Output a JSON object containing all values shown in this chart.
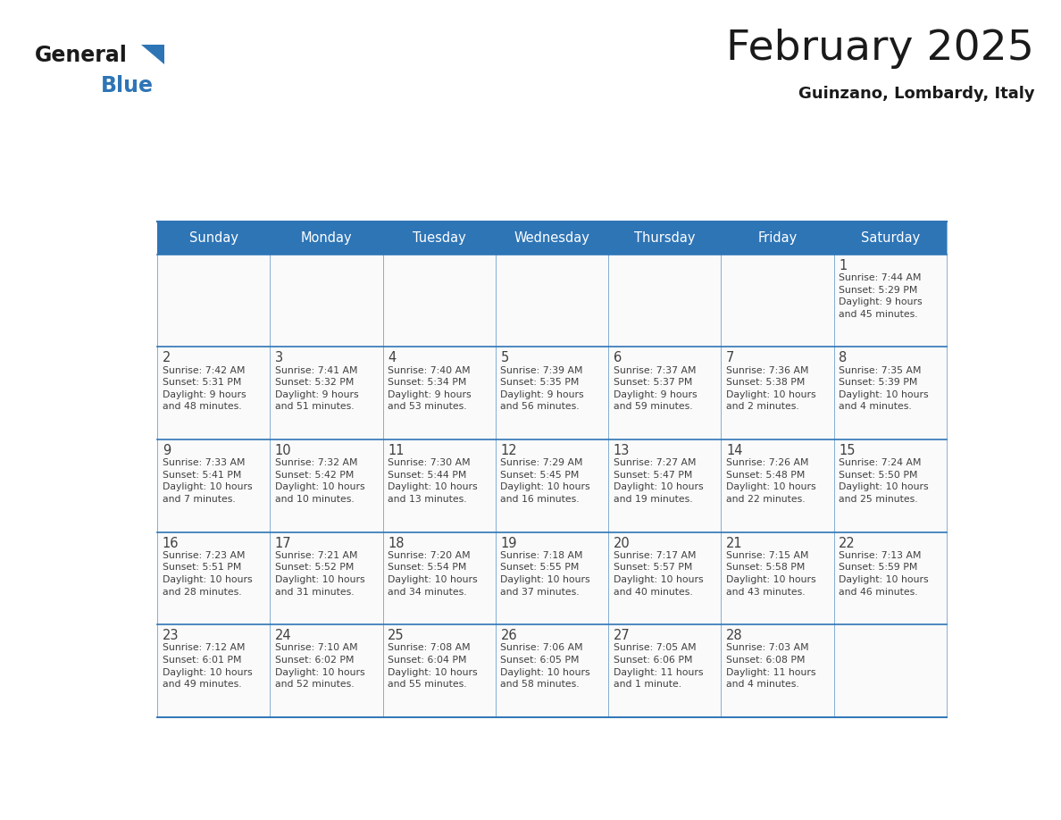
{
  "title": "February 2025",
  "subtitle": "Guinzano, Lombardy, Italy",
  "header_bg": "#2E75B6",
  "header_fg": "#FFFFFF",
  "cell_bg": "#FAFAFA",
  "border_color": "#2E75B6",
  "text_color": "#404040",
  "days_of_week": [
    "Sunday",
    "Monday",
    "Tuesday",
    "Wednesday",
    "Thursday",
    "Friday",
    "Saturday"
  ],
  "calendar": [
    [
      {
        "day": null,
        "info": null
      },
      {
        "day": null,
        "info": null
      },
      {
        "day": null,
        "info": null
      },
      {
        "day": null,
        "info": null
      },
      {
        "day": null,
        "info": null
      },
      {
        "day": null,
        "info": null
      },
      {
        "day": 1,
        "info": "Sunrise: 7:44 AM\nSunset: 5:29 PM\nDaylight: 9 hours\nand 45 minutes."
      }
    ],
    [
      {
        "day": 2,
        "info": "Sunrise: 7:42 AM\nSunset: 5:31 PM\nDaylight: 9 hours\nand 48 minutes."
      },
      {
        "day": 3,
        "info": "Sunrise: 7:41 AM\nSunset: 5:32 PM\nDaylight: 9 hours\nand 51 minutes."
      },
      {
        "day": 4,
        "info": "Sunrise: 7:40 AM\nSunset: 5:34 PM\nDaylight: 9 hours\nand 53 minutes."
      },
      {
        "day": 5,
        "info": "Sunrise: 7:39 AM\nSunset: 5:35 PM\nDaylight: 9 hours\nand 56 minutes."
      },
      {
        "day": 6,
        "info": "Sunrise: 7:37 AM\nSunset: 5:37 PM\nDaylight: 9 hours\nand 59 minutes."
      },
      {
        "day": 7,
        "info": "Sunrise: 7:36 AM\nSunset: 5:38 PM\nDaylight: 10 hours\nand 2 minutes."
      },
      {
        "day": 8,
        "info": "Sunrise: 7:35 AM\nSunset: 5:39 PM\nDaylight: 10 hours\nand 4 minutes."
      }
    ],
    [
      {
        "day": 9,
        "info": "Sunrise: 7:33 AM\nSunset: 5:41 PM\nDaylight: 10 hours\nand 7 minutes."
      },
      {
        "day": 10,
        "info": "Sunrise: 7:32 AM\nSunset: 5:42 PM\nDaylight: 10 hours\nand 10 minutes."
      },
      {
        "day": 11,
        "info": "Sunrise: 7:30 AM\nSunset: 5:44 PM\nDaylight: 10 hours\nand 13 minutes."
      },
      {
        "day": 12,
        "info": "Sunrise: 7:29 AM\nSunset: 5:45 PM\nDaylight: 10 hours\nand 16 minutes."
      },
      {
        "day": 13,
        "info": "Sunrise: 7:27 AM\nSunset: 5:47 PM\nDaylight: 10 hours\nand 19 minutes."
      },
      {
        "day": 14,
        "info": "Sunrise: 7:26 AM\nSunset: 5:48 PM\nDaylight: 10 hours\nand 22 minutes."
      },
      {
        "day": 15,
        "info": "Sunrise: 7:24 AM\nSunset: 5:50 PM\nDaylight: 10 hours\nand 25 minutes."
      }
    ],
    [
      {
        "day": 16,
        "info": "Sunrise: 7:23 AM\nSunset: 5:51 PM\nDaylight: 10 hours\nand 28 minutes."
      },
      {
        "day": 17,
        "info": "Sunrise: 7:21 AM\nSunset: 5:52 PM\nDaylight: 10 hours\nand 31 minutes."
      },
      {
        "day": 18,
        "info": "Sunrise: 7:20 AM\nSunset: 5:54 PM\nDaylight: 10 hours\nand 34 minutes."
      },
      {
        "day": 19,
        "info": "Sunrise: 7:18 AM\nSunset: 5:55 PM\nDaylight: 10 hours\nand 37 minutes."
      },
      {
        "day": 20,
        "info": "Sunrise: 7:17 AM\nSunset: 5:57 PM\nDaylight: 10 hours\nand 40 minutes."
      },
      {
        "day": 21,
        "info": "Sunrise: 7:15 AM\nSunset: 5:58 PM\nDaylight: 10 hours\nand 43 minutes."
      },
      {
        "day": 22,
        "info": "Sunrise: 7:13 AM\nSunset: 5:59 PM\nDaylight: 10 hours\nand 46 minutes."
      }
    ],
    [
      {
        "day": 23,
        "info": "Sunrise: 7:12 AM\nSunset: 6:01 PM\nDaylight: 10 hours\nand 49 minutes."
      },
      {
        "day": 24,
        "info": "Sunrise: 7:10 AM\nSunset: 6:02 PM\nDaylight: 10 hours\nand 52 minutes."
      },
      {
        "day": 25,
        "info": "Sunrise: 7:08 AM\nSunset: 6:04 PM\nDaylight: 10 hours\nand 55 minutes."
      },
      {
        "day": 26,
        "info": "Sunrise: 7:06 AM\nSunset: 6:05 PM\nDaylight: 10 hours\nand 58 minutes."
      },
      {
        "day": 27,
        "info": "Sunrise: 7:05 AM\nSunset: 6:06 PM\nDaylight: 11 hours\nand 1 minute."
      },
      {
        "day": 28,
        "info": "Sunrise: 7:03 AM\nSunset: 6:08 PM\nDaylight: 11 hours\nand 4 minutes."
      },
      {
        "day": null,
        "info": null
      }
    ]
  ]
}
